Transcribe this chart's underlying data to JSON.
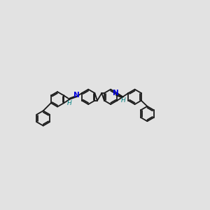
{
  "bg_color": "#e2e2e2",
  "bond_color": "#1a1a1a",
  "N_color": "#0000dd",
  "H_color": "#008080",
  "lw": 1.3,
  "r": 0.55,
  "dbo": 0.09,
  "figsize": [
    3.0,
    3.0
  ],
  "dpi": 100,
  "xlim": [
    -0.5,
    11.5
  ],
  "ylim": [
    0.8,
    7.2
  ]
}
